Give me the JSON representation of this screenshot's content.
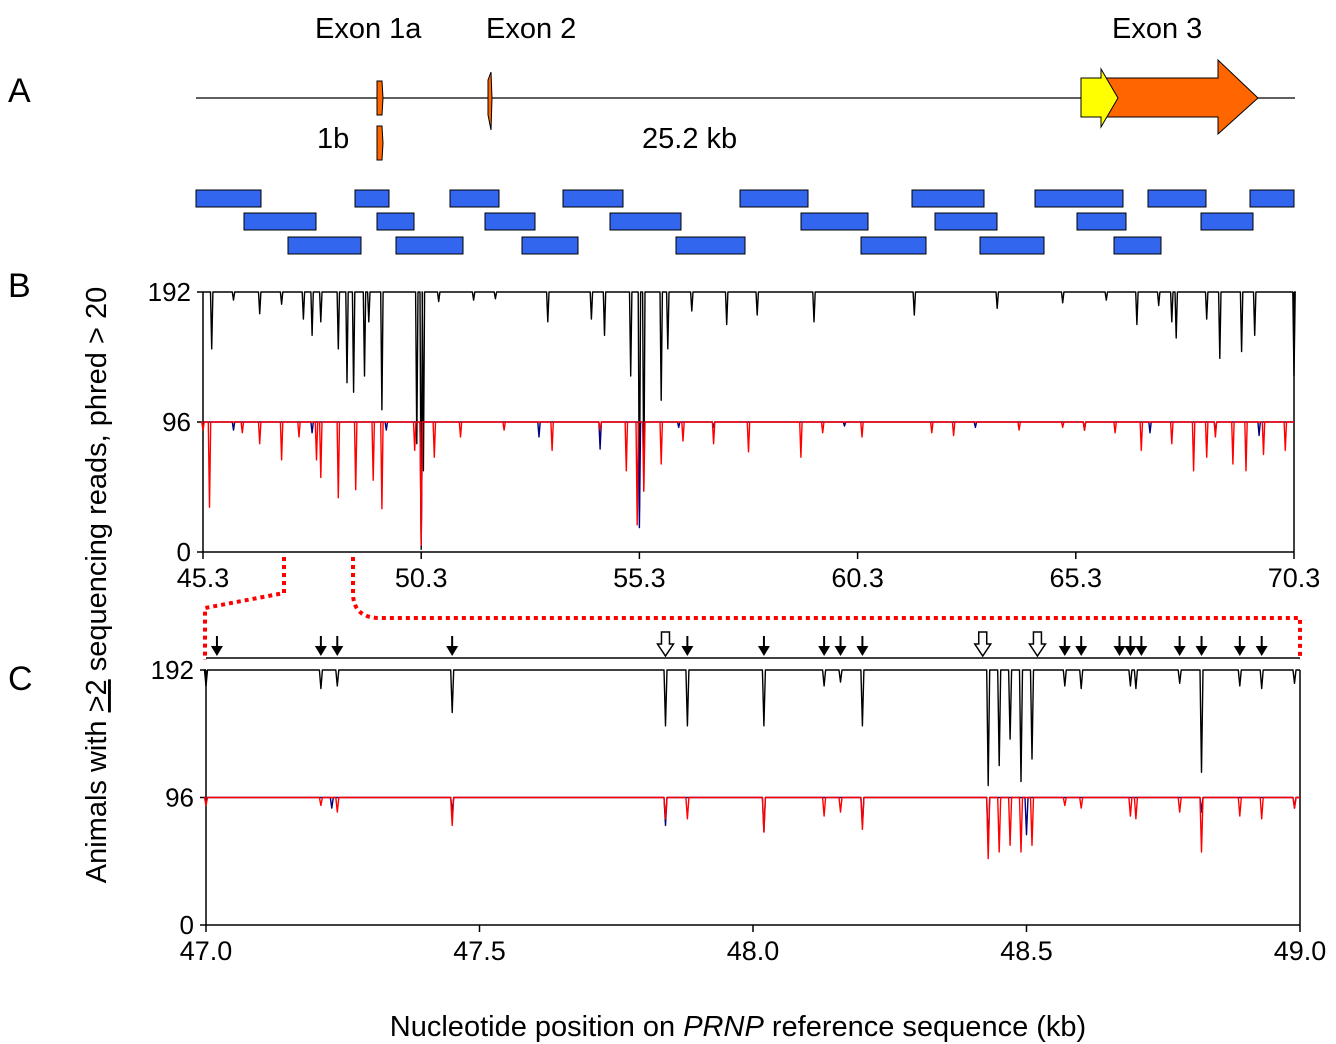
{
  "panel_letters": {
    "a": "A",
    "b": "B",
    "c": "C"
  },
  "gene": {
    "exon1a_label": "Exon 1a",
    "exon2_label": "Exon 2",
    "exon3_label": "Exon 3",
    "exon1b_label": "1b",
    "length_label": "25.2 kb",
    "colors": {
      "exon": "#ff6600",
      "utr": "#ffff00",
      "amplicon": "#3366ee"
    }
  },
  "y_axis_label": {
    "pre": "Animals with ",
    "ge": ">2",
    "post": " sequencing reads, phred > 20"
  },
  "x_axis_label": {
    "pre": "Nucleotide position on ",
    "gene": "PRNP",
    "post": " reference sequence (kb)"
  },
  "chart_data": [
    {
      "type": "line",
      "panel": "B",
      "x_ticks": [
        "45.3",
        "50.3",
        "55.3",
        "60.3",
        "65.3",
        "70.3"
      ],
      "y_ticks": [
        "0",
        "96",
        "192"
      ],
      "xlim": [
        45.3,
        70.3
      ],
      "ylim": [
        0,
        192
      ],
      "series": [
        {
          "color": "#000000",
          "baseline": 192,
          "dips": [
            [
              45.5,
              150
            ],
            [
              46.0,
              186
            ],
            [
              46.6,
              176
            ],
            [
              47.1,
              183
            ],
            [
              47.6,
              172
            ],
            [
              47.8,
              160
            ],
            [
              48.0,
              170
            ],
            [
              48.4,
              150
            ],
            [
              48.6,
              125
            ],
            [
              48.75,
              118
            ],
            [
              49.0,
              130
            ],
            [
              49.1,
              170
            ],
            [
              49.4,
              105
            ],
            [
              50.2,
              80
            ],
            [
              50.3,
              2
            ],
            [
              50.35,
              60
            ],
            [
              50.7,
              185
            ],
            [
              51.5,
              186
            ],
            [
              52.0,
              187
            ],
            [
              53.2,
              170
            ],
            [
              54.2,
              172
            ],
            [
              54.5,
              160
            ],
            [
              55.1,
              130
            ],
            [
              55.3,
              30
            ],
            [
              55.4,
              45
            ],
            [
              55.8,
              112
            ],
            [
              55.95,
              150
            ],
            [
              56.5,
              178
            ],
            [
              57.3,
              168
            ],
            [
              58.0,
              175
            ],
            [
              59.3,
              170
            ],
            [
              61.6,
              175
            ],
            [
              63.5,
              180
            ],
            [
              65.0,
              184
            ],
            [
              66.0,
              186
            ],
            [
              66.7,
              168
            ],
            [
              67.2,
              182
            ],
            [
              67.5,
              170
            ],
            [
              67.6,
              158
            ],
            [
              68.3,
              172
            ],
            [
              68.6,
              143
            ],
            [
              69.1,
              148
            ],
            [
              69.4,
              160
            ],
            [
              70.3,
              130
            ]
          ]
        },
        {
          "color": "#000080",
          "baseline": 96,
          "dips": [
            [
              46.0,
              90
            ],
            [
              47.8,
              88
            ],
            [
              49.5,
              90
            ],
            [
              50.3,
              5
            ],
            [
              53.0,
              85
            ],
            [
              54.4,
              76
            ],
            [
              55.3,
              18
            ],
            [
              56.2,
              92
            ],
            [
              57.0,
              92
            ],
            [
              60.0,
              93
            ],
            [
              63.0,
              92
            ],
            [
              65.5,
              90
            ],
            [
              67.0,
              88
            ],
            [
              68.5,
              88
            ],
            [
              69.5,
              86
            ]
          ]
        },
        {
          "color": "#ff0000",
          "baseline": 96,
          "dips": [
            [
              45.3,
              90
            ],
            [
              45.45,
              33
            ],
            [
              46.2,
              88
            ],
            [
              46.6,
              80
            ],
            [
              47.1,
              68
            ],
            [
              47.5,
              85
            ],
            [
              47.9,
              68
            ],
            [
              48.0,
              55
            ],
            [
              48.4,
              40
            ],
            [
              48.8,
              46
            ],
            [
              49.2,
              53
            ],
            [
              49.4,
              32
            ],
            [
              50.15,
              75
            ],
            [
              50.3,
              5
            ],
            [
              50.6,
              70
            ],
            [
              51.2,
              85
            ],
            [
              52.2,
              90
            ],
            [
              53.3,
              75
            ],
            [
              54.4,
              90
            ],
            [
              55.0,
              60
            ],
            [
              55.25,
              20
            ],
            [
              55.4,
              45
            ],
            [
              55.8,
              65
            ],
            [
              56.3,
              82
            ],
            [
              57.0,
              80
            ],
            [
              57.8,
              74
            ],
            [
              59.0,
              70
            ],
            [
              59.5,
              88
            ],
            [
              60.4,
              85
            ],
            [
              62.0,
              88
            ],
            [
              62.5,
              86
            ],
            [
              64.0,
              90
            ],
            [
              65.0,
              92
            ],
            [
              65.5,
              90
            ],
            [
              66.2,
              88
            ],
            [
              66.8,
              75
            ],
            [
              67.5,
              80
            ],
            [
              68.0,
              60
            ],
            [
              68.3,
              70
            ],
            [
              68.5,
              85
            ],
            [
              68.9,
              65
            ],
            [
              69.2,
              60
            ],
            [
              69.6,
              72
            ],
            [
              70.1,
              75
            ]
          ]
        }
      ]
    },
    {
      "type": "line",
      "panel": "C",
      "x_ticks": [
        "47.0",
        "47.5",
        "48.0",
        "48.5",
        "49.0"
      ],
      "y_ticks": [
        "0",
        "96",
        "192"
      ],
      "xlim": [
        47.0,
        49.0
      ],
      "ylim": [
        0,
        192
      ],
      "markers_filled": [
        47.02,
        47.21,
        47.24,
        47.45,
        47.88,
        48.02,
        48.13,
        48.16,
        48.2,
        48.57,
        48.6,
        48.67,
        48.69,
        48.71,
        48.78,
        48.82,
        48.89,
        48.93
      ],
      "markers_open": [
        47.84,
        48.42,
        48.52
      ],
      "series": [
        {
          "color": "#000000",
          "baseline": 192,
          "dips": [
            [
              47.0,
              180
            ],
            [
              47.21,
              178
            ],
            [
              47.24,
              180
            ],
            [
              47.45,
              160
            ],
            [
              47.84,
              150
            ],
            [
              47.88,
              150
            ],
            [
              48.02,
              150
            ],
            [
              48.13,
              180
            ],
            [
              48.16,
              183
            ],
            [
              48.2,
              150
            ],
            [
              48.43,
              105
            ],
            [
              48.45,
              120
            ],
            [
              48.47,
              140
            ],
            [
              48.49,
              108
            ],
            [
              48.51,
              125
            ],
            [
              48.57,
              180
            ],
            [
              48.6,
              178
            ],
            [
              48.69,
              180
            ],
            [
              48.7,
              178
            ],
            [
              48.78,
              182
            ],
            [
              48.82,
              115
            ],
            [
              48.89,
              180
            ],
            [
              48.93,
              178
            ],
            [
              48.99,
              182
            ]
          ]
        },
        {
          "color": "#000080",
          "baseline": 96,
          "dips": [
            [
              47.0,
              92
            ],
            [
              47.23,
              88
            ],
            [
              47.45,
              85
            ],
            [
              47.84,
              75
            ],
            [
              48.02,
              70
            ],
            [
              48.2,
              75
            ],
            [
              48.43,
              60
            ],
            [
              48.5,
              68
            ],
            [
              48.82,
              85
            ],
            [
              48.99,
              88
            ]
          ]
        },
        {
          "color": "#ff0000",
          "baseline": 96,
          "dips": [
            [
              47.0,
              90
            ],
            [
              47.21,
              90
            ],
            [
              47.24,
              85
            ],
            [
              47.45,
              75
            ],
            [
              47.84,
              80
            ],
            [
              47.88,
              80
            ],
            [
              48.02,
              70
            ],
            [
              48.13,
              82
            ],
            [
              48.16,
              85
            ],
            [
              48.2,
              72
            ],
            [
              48.43,
              50
            ],
            [
              48.45,
              55
            ],
            [
              48.47,
              60
            ],
            [
              48.49,
              55
            ],
            [
              48.51,
              60
            ],
            [
              48.57,
              90
            ],
            [
              48.6,
              88
            ],
            [
              48.69,
              82
            ],
            [
              48.7,
              80
            ],
            [
              48.78,
              85
            ],
            [
              48.82,
              55
            ],
            [
              48.89,
              82
            ],
            [
              48.93,
              80
            ],
            [
              48.99,
              88
            ]
          ]
        }
      ]
    }
  ]
}
